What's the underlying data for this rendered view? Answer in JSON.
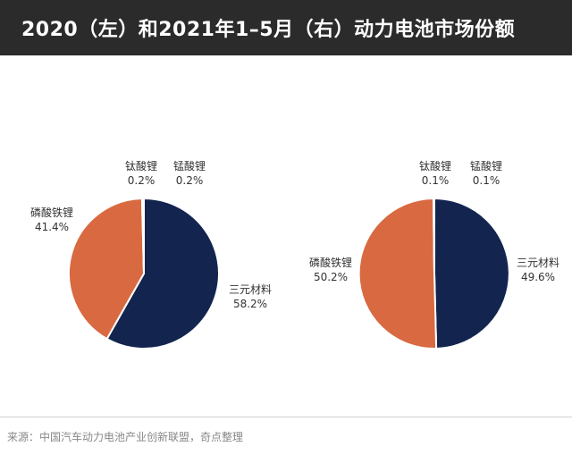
{
  "header": {
    "title": "2020（左）和2021年1–5月（右）动力电池市场份额"
  },
  "chart_data": [
    {
      "type": "pie",
      "slices": [
        {
          "name": "三元材料",
          "value": 58.2,
          "label": "58.2%",
          "color": "#13244f"
        },
        {
          "name": "磷酸铁锂",
          "value": 41.4,
          "label": "41.4%",
          "color": "#d96940"
        },
        {
          "name": "钛酸锂",
          "value": 0.2,
          "label": "0.2%",
          "color": "#d96940"
        },
        {
          "name": "锰酸锂",
          "value": 0.2,
          "label": "0.2%",
          "color": "#13244f"
        }
      ]
    },
    {
      "type": "pie",
      "slices": [
        {
          "name": "三元材料",
          "value": 49.6,
          "label": "49.6%",
          "color": "#13244f"
        },
        {
          "name": "磷酸铁锂",
          "value": 50.2,
          "label": "50.2%",
          "color": "#d96940"
        },
        {
          "name": "钛酸锂",
          "value": 0.1,
          "label": "0.1%",
          "color": "#d96940"
        },
        {
          "name": "锰酸锂",
          "value": 0.1,
          "label": "0.1%",
          "color": "#13244f"
        }
      ]
    }
  ],
  "footer": {
    "source": "来源：中国汽车动力电池产业创新联盟，奇点整理"
  }
}
